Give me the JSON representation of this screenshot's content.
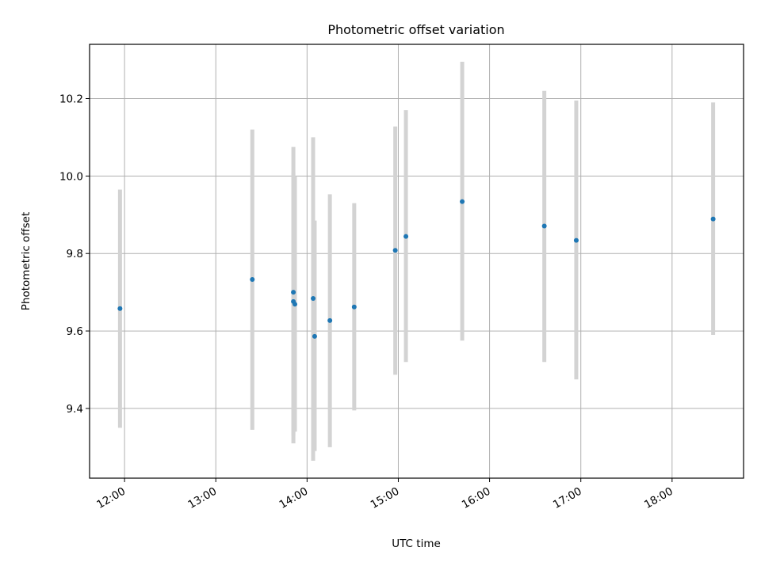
{
  "chart_data": {
    "type": "scatter",
    "title": "Photometric offset variation",
    "xlabel": "UTC time",
    "ylabel": "Photometric offset",
    "x_axis_type": "time",
    "xlim": [
      "11:37",
      "18:47"
    ],
    "ylim": [
      9.22,
      10.34
    ],
    "xticks": [
      "12:00",
      "13:00",
      "14:00",
      "15:00",
      "16:00",
      "17:00",
      "18:00"
    ],
    "yticks": [
      "9.4",
      "9.6",
      "9.8",
      "10.0",
      "10.2"
    ],
    "ytick_values": [
      9.4,
      9.6,
      9.8,
      10.0,
      10.2
    ],
    "grid": true,
    "legend": "none",
    "colors": {
      "point": "#1f77b4",
      "errorbar": "#d3d3d3",
      "grid": "#b0b0b0"
    },
    "series": [
      {
        "points": [
          {
            "x": "11:57",
            "y": 9.658,
            "low": 9.35,
            "high": 9.965
          },
          {
            "x": "13:24",
            "y": 9.733,
            "low": 9.345,
            "high": 10.12
          },
          {
            "x": "13:51",
            "y": 9.7,
            "low": 9.31,
            "high": 10.075
          },
          {
            "x": "13:51",
            "y": 9.676,
            "low": 9.33,
            "high": 10.01
          },
          {
            "x": "13:52",
            "y": 9.669,
            "low": 9.34,
            "high": 10.0
          },
          {
            "x": "14:04",
            "y": 9.684,
            "low": 9.265,
            "high": 10.1
          },
          {
            "x": "14:05",
            "y": 9.586,
            "low": 9.29,
            "high": 9.885
          },
          {
            "x": "14:15",
            "y": 9.627,
            "low": 9.3,
            "high": 9.953
          },
          {
            "x": "14:31",
            "y": 9.662,
            "low": 9.395,
            "high": 9.93
          },
          {
            "x": "14:58",
            "y": 9.808,
            "low": 9.487,
            "high": 10.128
          },
          {
            "x": "15:05",
            "y": 9.844,
            "low": 9.52,
            "high": 10.17
          },
          {
            "x": "15:42",
            "y": 9.934,
            "low": 9.575,
            "high": 10.295
          },
          {
            "x": "16:36",
            "y": 9.871,
            "low": 9.52,
            "high": 10.22
          },
          {
            "x": "16:57",
            "y": 9.834,
            "low": 9.475,
            "high": 10.195
          },
          {
            "x": "18:27",
            "y": 9.889,
            "low": 9.59,
            "high": 10.19
          }
        ]
      }
    ]
  }
}
